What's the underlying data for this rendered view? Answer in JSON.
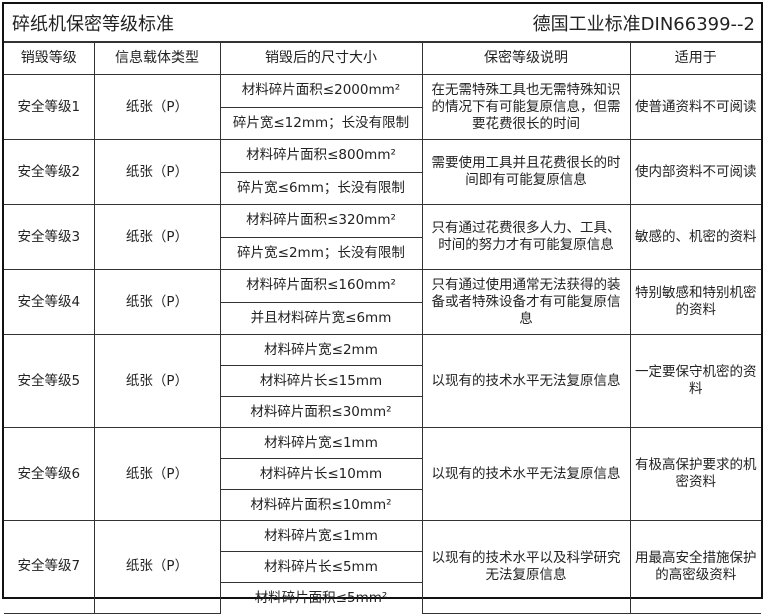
{
  "title": "碎纸机保密等级标准",
  "standard": "德国工业标准DIN66399--2",
  "headers": [
    "销毁等级",
    "信息载体类型",
    "销毁后的尺寸大小",
    "保密等级说明",
    "适用于"
  ],
  "rows": [
    {
      "level": "安全等级1",
      "media": "纸张（P）",
      "sizes": [
        "材料碎片面积≤2000mm²",
        "碎片宽≤12mm；长没有限制"
      ],
      "desc": "在无需特殊工具也无需特殊知识的情况下有可能复原信息，但需要花费很长的时间",
      "use": "使普通资料不可阅读"
    },
    {
      "level": "安全等级2",
      "media": "纸张（P）",
      "sizes": [
        "材料碎片面积≤800mm²",
        "碎片宽≤6mm；长没有限制"
      ],
      "desc": "需要使用工具并且花费很长的时间即有可能复原信息",
      "use": "使内部资料不可阅读"
    },
    {
      "level": "安全等级3",
      "media": "纸张（P）",
      "sizes": [
        "材料碎片面积≤320mm²",
        "碎片宽≤2mm；长没有限制"
      ],
      "desc": "只有通过花费很多人力、工具、时间的努力才有可能复原信息",
      "use": "敏感的、机密的资料"
    },
    {
      "level": "安全等级4",
      "media": "纸张（P）",
      "sizes": [
        "材料碎片面积≤160mm²",
        "并且材料碎片宽≤6mm"
      ],
      "desc": "只有通过使用通常无法获得的装备或者特殊设备才有可能复原信息",
      "use": "特别敏感和特别机密的资料"
    },
    {
      "level": "安全等级5",
      "media": "纸张（P）",
      "sizes": [
        "材料碎片宽≤2mm",
        "材料碎片长≤15mm",
        "材料碎片面积≤30mm²"
      ],
      "desc": "以现有的技术水平无法复原信息",
      "use": "一定要保守机密的资料"
    },
    {
      "level": "安全等级6",
      "media": "纸张（P）",
      "sizes": [
        "材料碎片宽≤1mm",
        "材料碎片长≤10mm",
        "材料碎片面积≤10mm²"
      ],
      "desc": "以现有的技术水平无法复原信息",
      "use": "有极高保护要求的机密资料"
    },
    {
      "level": "安全等级7",
      "media": "纸张（P）",
      "sizes": [
        "材料碎片宽≤1mm",
        "材料碎片长≤5mm",
        "材料碎片面积≤5mm²"
      ],
      "desc": "以现有的技术水平以及科学研究无法复原信息",
      "use": "用最高安全措施保护的高密级资料"
    }
  ]
}
